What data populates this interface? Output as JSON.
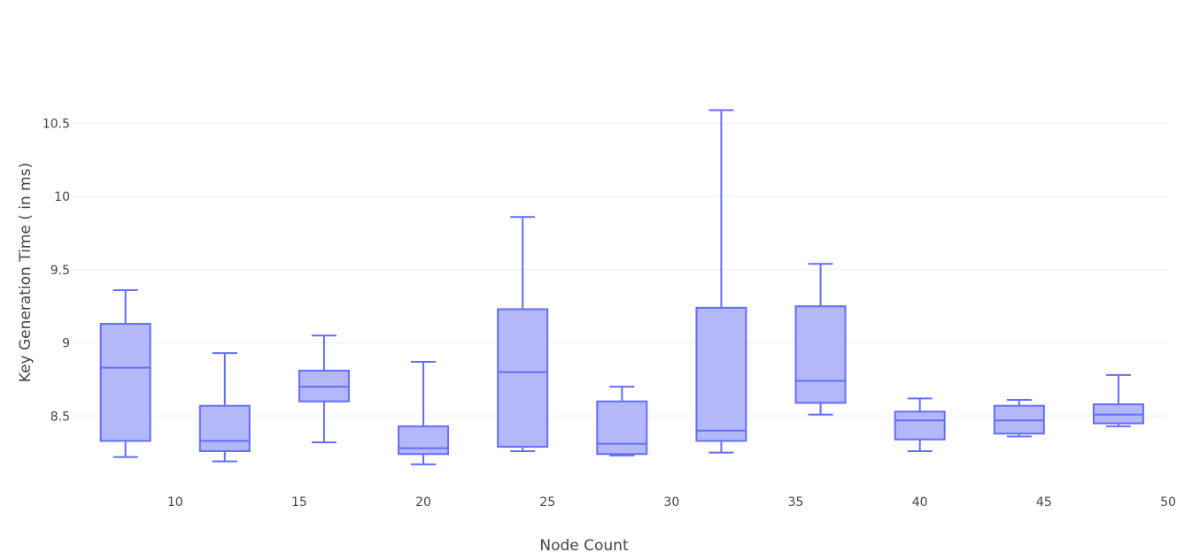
{
  "chart_data": {
    "type": "box",
    "title": "",
    "xlabel": "Node Count",
    "ylabel": "Key Generation Time ( in ms)",
    "xlim": [
      5.8,
      50
    ],
    "ylim": [
      8.03,
      10.98
    ],
    "x_ticks": [
      10,
      15,
      20,
      25,
      30,
      35,
      40,
      45,
      50
    ],
    "y_ticks": [
      8.5,
      9,
      9.5,
      10,
      10.5
    ],
    "y_tick_labels": [
      "8.5",
      "9",
      "9.5",
      "10",
      "10.5"
    ],
    "grid": "horizontal",
    "colors": {
      "box_fill": "#b3b8f8",
      "box_line": "#636efa",
      "grid": "#eeeeee",
      "text": "#444444"
    },
    "boxes": [
      {
        "x": 8,
        "min": 8.22,
        "q1": 8.33,
        "median": 8.83,
        "q3": 9.13,
        "max": 9.36
      },
      {
        "x": 12,
        "min": 8.19,
        "q1": 8.26,
        "median": 8.33,
        "q3": 8.57,
        "max": 8.93
      },
      {
        "x": 16,
        "min": 8.32,
        "q1": 8.6,
        "median": 8.7,
        "q3": 8.81,
        "max": 9.05
      },
      {
        "x": 20,
        "min": 8.17,
        "q1": 8.24,
        "median": 8.28,
        "q3": 8.43,
        "max": 8.87
      },
      {
        "x": 24,
        "min": 8.26,
        "q1": 8.29,
        "median": 8.8,
        "q3": 9.23,
        "max": 9.86
      },
      {
        "x": 28,
        "min": 8.23,
        "q1": 8.24,
        "median": 8.31,
        "q3": 8.6,
        "max": 8.7
      },
      {
        "x": 32,
        "min": 8.25,
        "q1": 8.33,
        "median": 8.4,
        "q3": 9.24,
        "max": 10.59
      },
      {
        "x": 36,
        "min": 8.51,
        "q1": 8.59,
        "median": 8.74,
        "q3": 9.25,
        "max": 9.54
      },
      {
        "x": 40,
        "min": 8.26,
        "q1": 8.34,
        "median": 8.47,
        "q3": 8.53,
        "max": 8.62
      },
      {
        "x": 44,
        "min": 8.36,
        "q1": 8.38,
        "median": 8.47,
        "q3": 8.57,
        "max": 8.61
      },
      {
        "x": 48,
        "min": 8.43,
        "q1": 8.45,
        "median": 8.51,
        "q3": 8.58,
        "max": 8.78
      }
    ]
  }
}
